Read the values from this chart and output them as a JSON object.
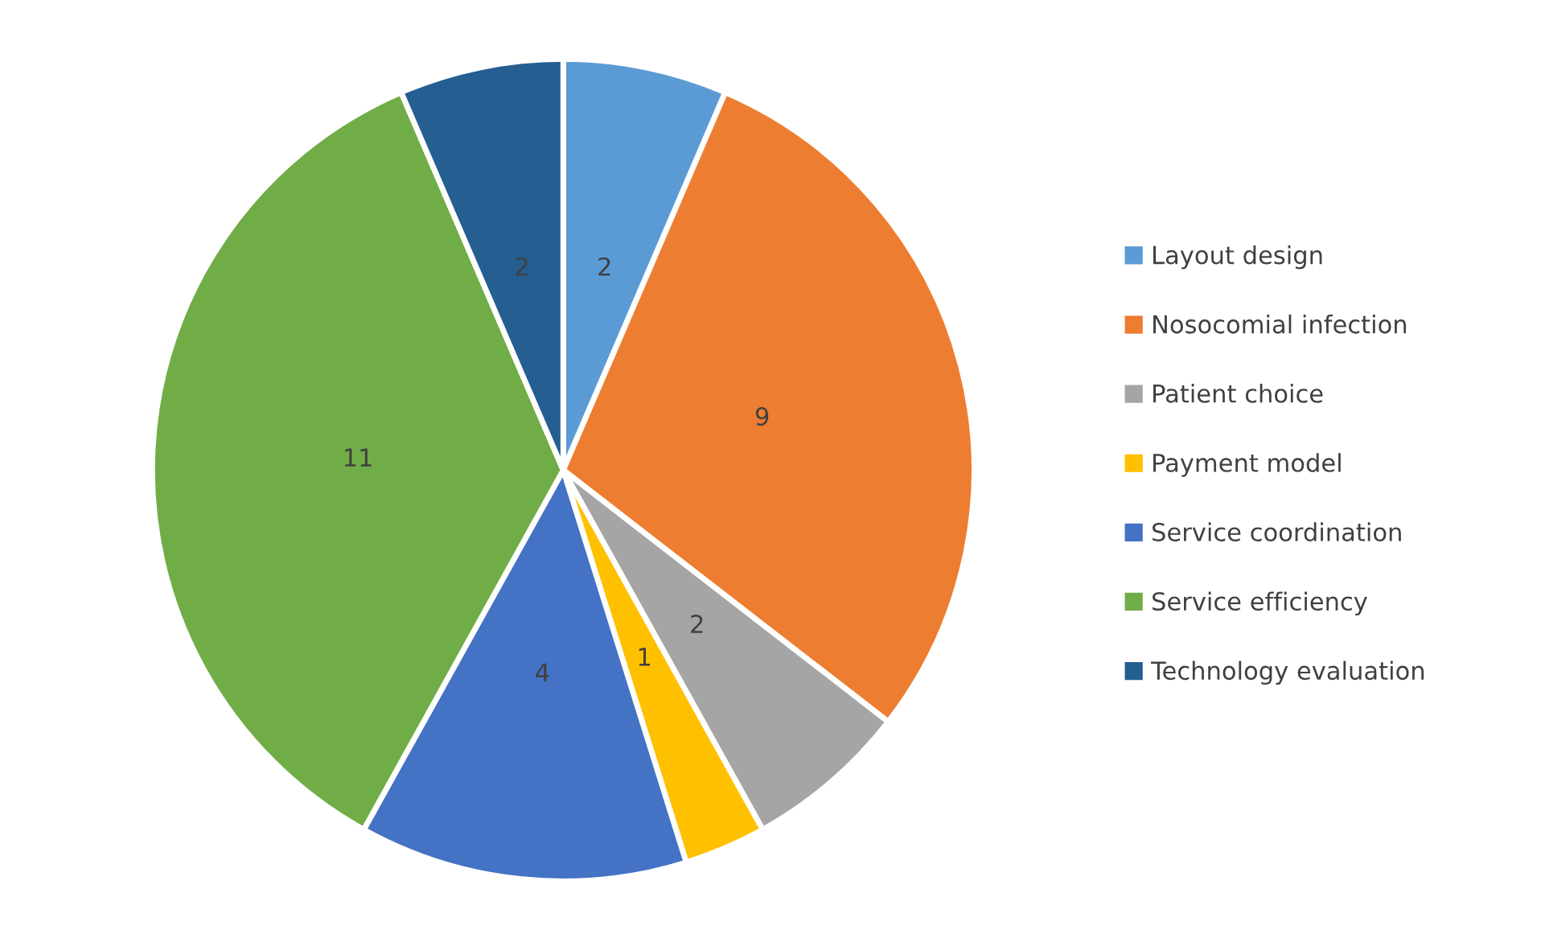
{
  "chart_data": {
    "type": "pie",
    "categories": [
      "Layout design",
      "Nosocomial infection",
      "Patient choice",
      "Payment model",
      "Service coordination",
      "Service efficiency",
      "Technology evaluation"
    ],
    "values": [
      2,
      9,
      2,
      1,
      4,
      11,
      2
    ],
    "colors": [
      "#5b9bd5",
      "#ed7d31",
      "#a5a5a5",
      "#ffc000",
      "#4472c4",
      "#70ad47",
      "#255e91"
    ],
    "data_labels": true,
    "legend": "right"
  }
}
